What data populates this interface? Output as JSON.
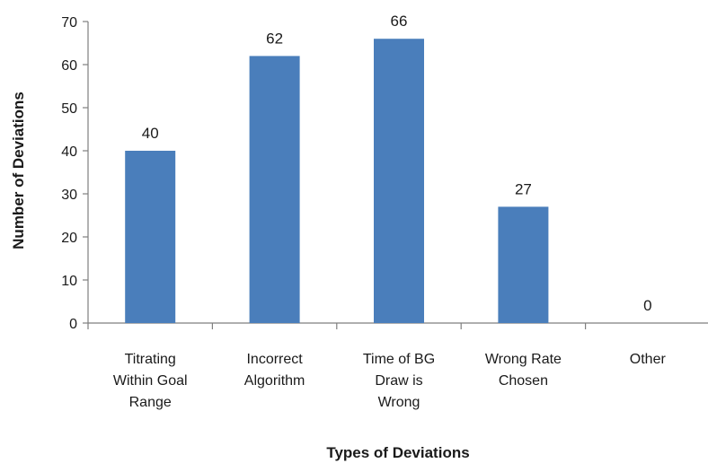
{
  "colors": {
    "bar": "#4a7ebb",
    "axis": "#7f7f7f"
  },
  "chart_data": {
    "type": "bar",
    "title": "",
    "xlabel": "Types of Deviations",
    "ylabel": "Number of Deviations",
    "categories": [
      [
        "Titrating",
        "Within Goal",
        "Range"
      ],
      [
        "Incorrect",
        "Algorithm"
      ],
      [
        "Time of BG",
        "Draw is",
        "Wrong"
      ],
      [
        "Wrong Rate",
        "Chosen"
      ],
      [
        "Other"
      ]
    ],
    "values": [
      40,
      62,
      66,
      27,
      0
    ],
    "data_labels": [
      "40",
      "62",
      "66",
      "27",
      "0"
    ],
    "ylim": [
      0,
      70
    ],
    "yticks": [
      0,
      10,
      20,
      30,
      40,
      50,
      60,
      70
    ],
    "grid": false,
    "legend": "none"
  }
}
